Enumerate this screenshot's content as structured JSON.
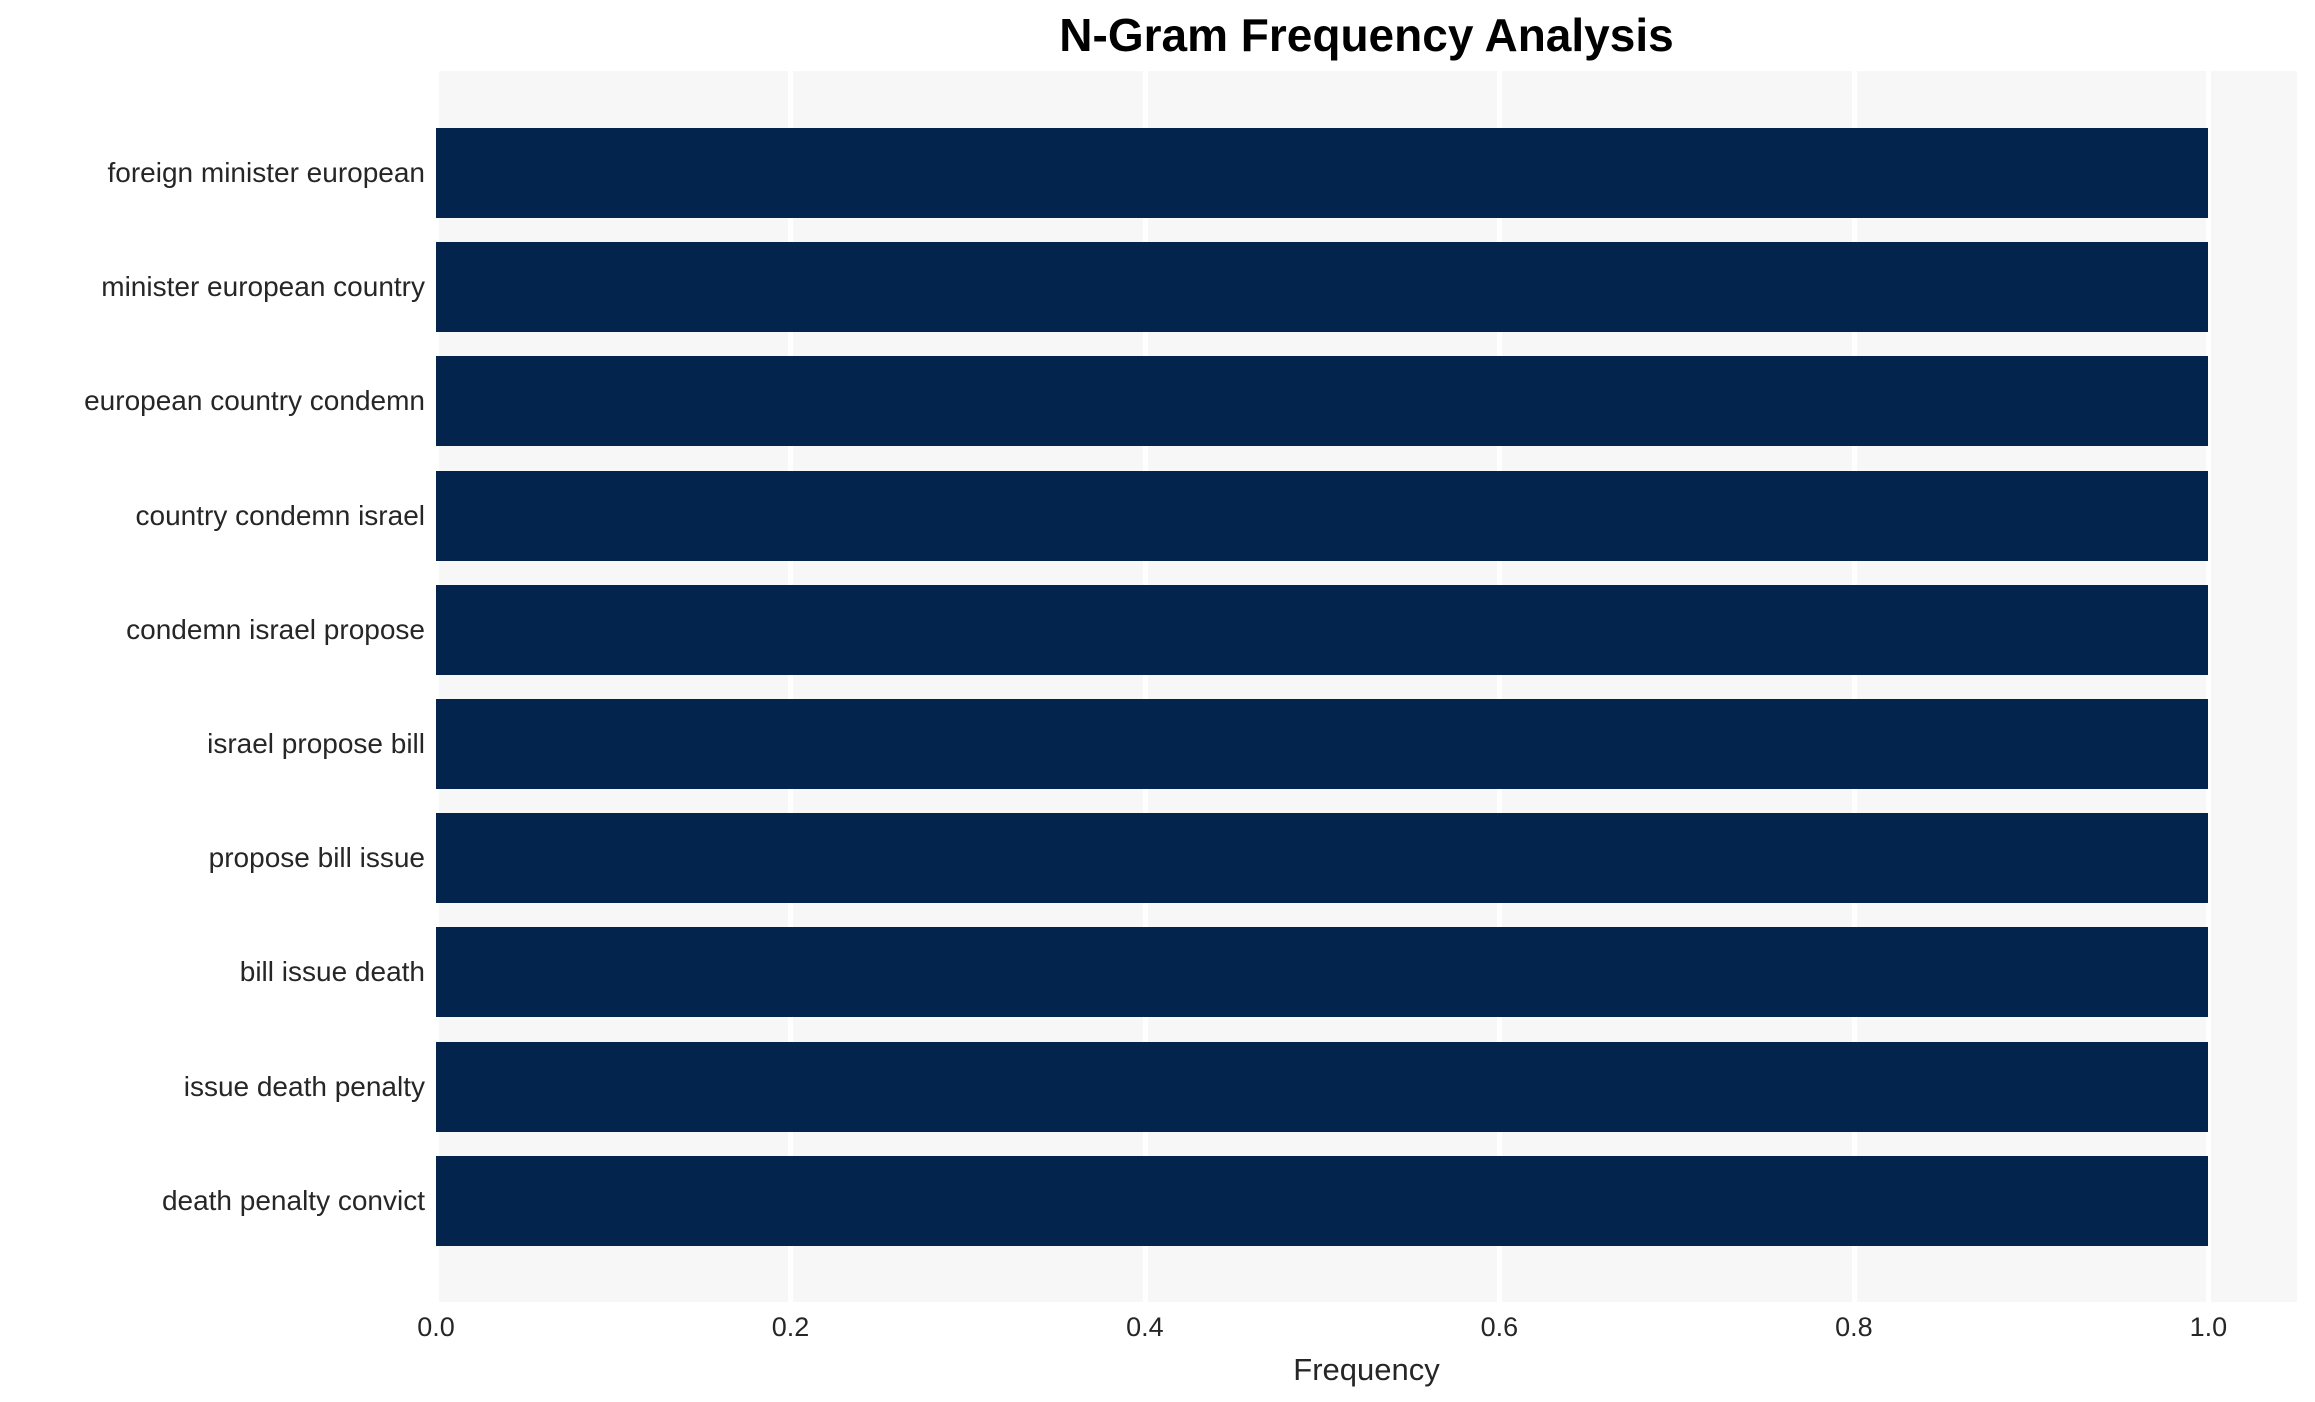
{
  "chart_data": {
    "type": "bar",
    "orientation": "horizontal",
    "title": "N-Gram Frequency Analysis",
    "xlabel": "Frequency",
    "ylabel": "",
    "categories": [
      "foreign minister european",
      "minister european country",
      "european country condemn",
      "country condemn israel",
      "condemn israel propose",
      "israel propose bill",
      "propose bill issue",
      "bill issue death",
      "issue death penalty",
      "death penalty convict"
    ],
    "values": [
      1.0,
      1.0,
      1.0,
      1.0,
      1.0,
      1.0,
      1.0,
      1.0,
      1.0,
      1.0
    ],
    "xlim": [
      0,
      1.05
    ],
    "xticks": [
      0.0,
      0.2,
      0.4,
      0.6,
      0.8,
      1.0
    ],
    "xtick_labels": [
      "0.0",
      "0.2",
      "0.4",
      "0.6",
      "0.8",
      "1.0"
    ],
    "grid": "vertical",
    "legend": "none",
    "colors": {
      "bar": "#03254d",
      "plot_background": "#f7f7f8",
      "figure_background": "#ffffff",
      "gridline": "#ffffff",
      "tick_text": "#262626",
      "title_text": "#000000"
    }
  }
}
